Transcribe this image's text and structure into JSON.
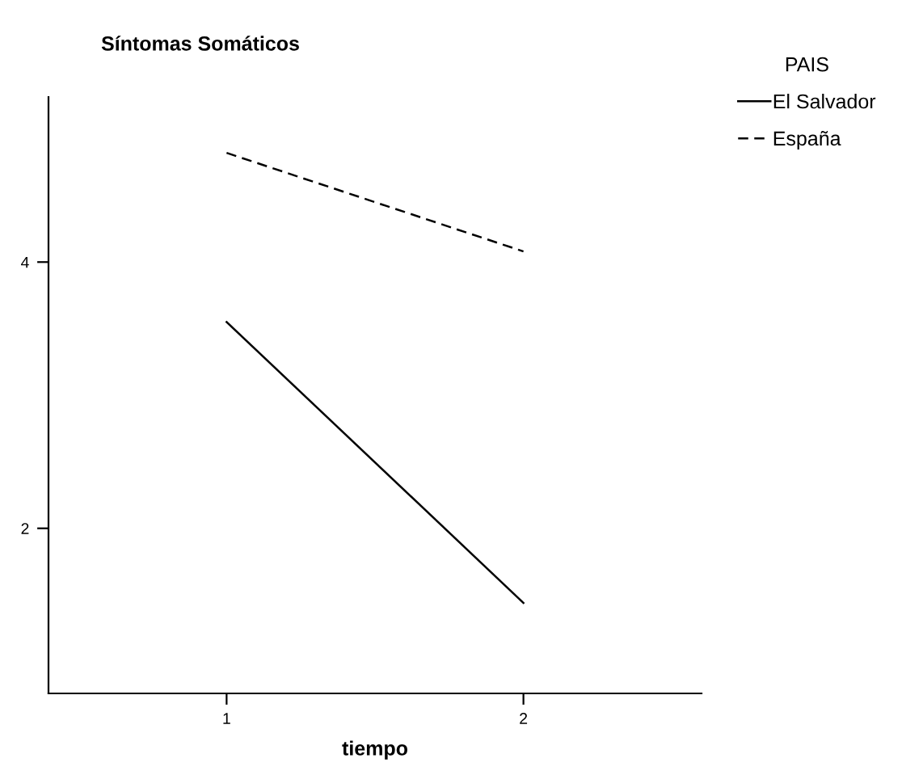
{
  "chart_data": {
    "type": "line",
    "title": "Síntomas Somáticos",
    "xlabel": "tiempo",
    "legend_title": "PAIS",
    "x": [
      1,
      2
    ],
    "series": [
      {
        "name": "El Salvador",
        "color": "#000000",
        "values": [
          3.55,
          1.44
        ],
        "line_style": "solid"
      },
      {
        "name": "España",
        "color": "#000000",
        "values": [
          4.82,
          4.08
        ],
        "line_style": "dashed"
      }
    ],
    "xlim": [
      0.4,
      2.6
    ],
    "xticks": [
      1,
      2
    ],
    "ylim": [
      0.76,
      5.24
    ],
    "yticks": [
      2,
      4
    ],
    "grid": false,
    "legend": "right",
    "marker": "none"
  }
}
